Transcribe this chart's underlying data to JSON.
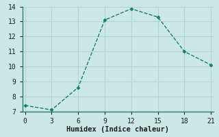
{
  "x": [
    0,
    3,
    6,
    9,
    12,
    15,
    18,
    21
  ],
  "y": [
    7.4,
    7.1,
    8.6,
    13.1,
    13.85,
    13.3,
    11.0,
    10.1
  ],
  "line_color": "#1a7a6e",
  "marker_color": "#1a7a6e",
  "xlabel": "Humidex (Indice chaleur)",
  "ylim": [
    7,
    14
  ],
  "xlim": [
    -0.3,
    21.3
  ],
  "yticks": [
    7,
    8,
    9,
    10,
    11,
    12,
    13,
    14
  ],
  "xticks": [
    0,
    3,
    6,
    9,
    12,
    15,
    18,
    21
  ],
  "background_color": "#cce8e6",
  "grid_color": "#afd4d2",
  "spine_color": "#2a7a6e",
  "font_color": "#1a1a1a",
  "tick_fontsize": 7,
  "xlabel_fontsize": 7.5
}
